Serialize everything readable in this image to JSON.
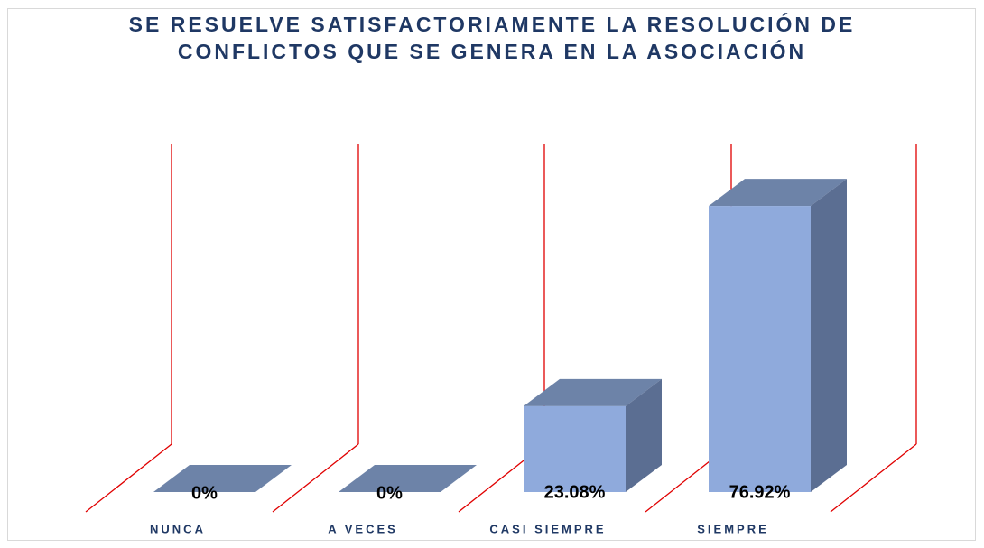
{
  "chart_data": {
    "type": "bar3d",
    "title": "SE RESUELVE SATISFACTORIAMENTE LA RESOLUCIÓN DE CONFLICTOS QUE SE GENERA EN LA ASOCIACIÓN",
    "categories": [
      "NUNCA",
      "A VECES",
      "CASI SIEMPRE",
      "SIEMPRE"
    ],
    "values": [
      0,
      0,
      23.08,
      76.92
    ],
    "value_labels": [
      "0%",
      "0%",
      "23.08%",
      "76.92%"
    ],
    "color": "#8faadc",
    "ylim": [
      0,
      100
    ]
  }
}
